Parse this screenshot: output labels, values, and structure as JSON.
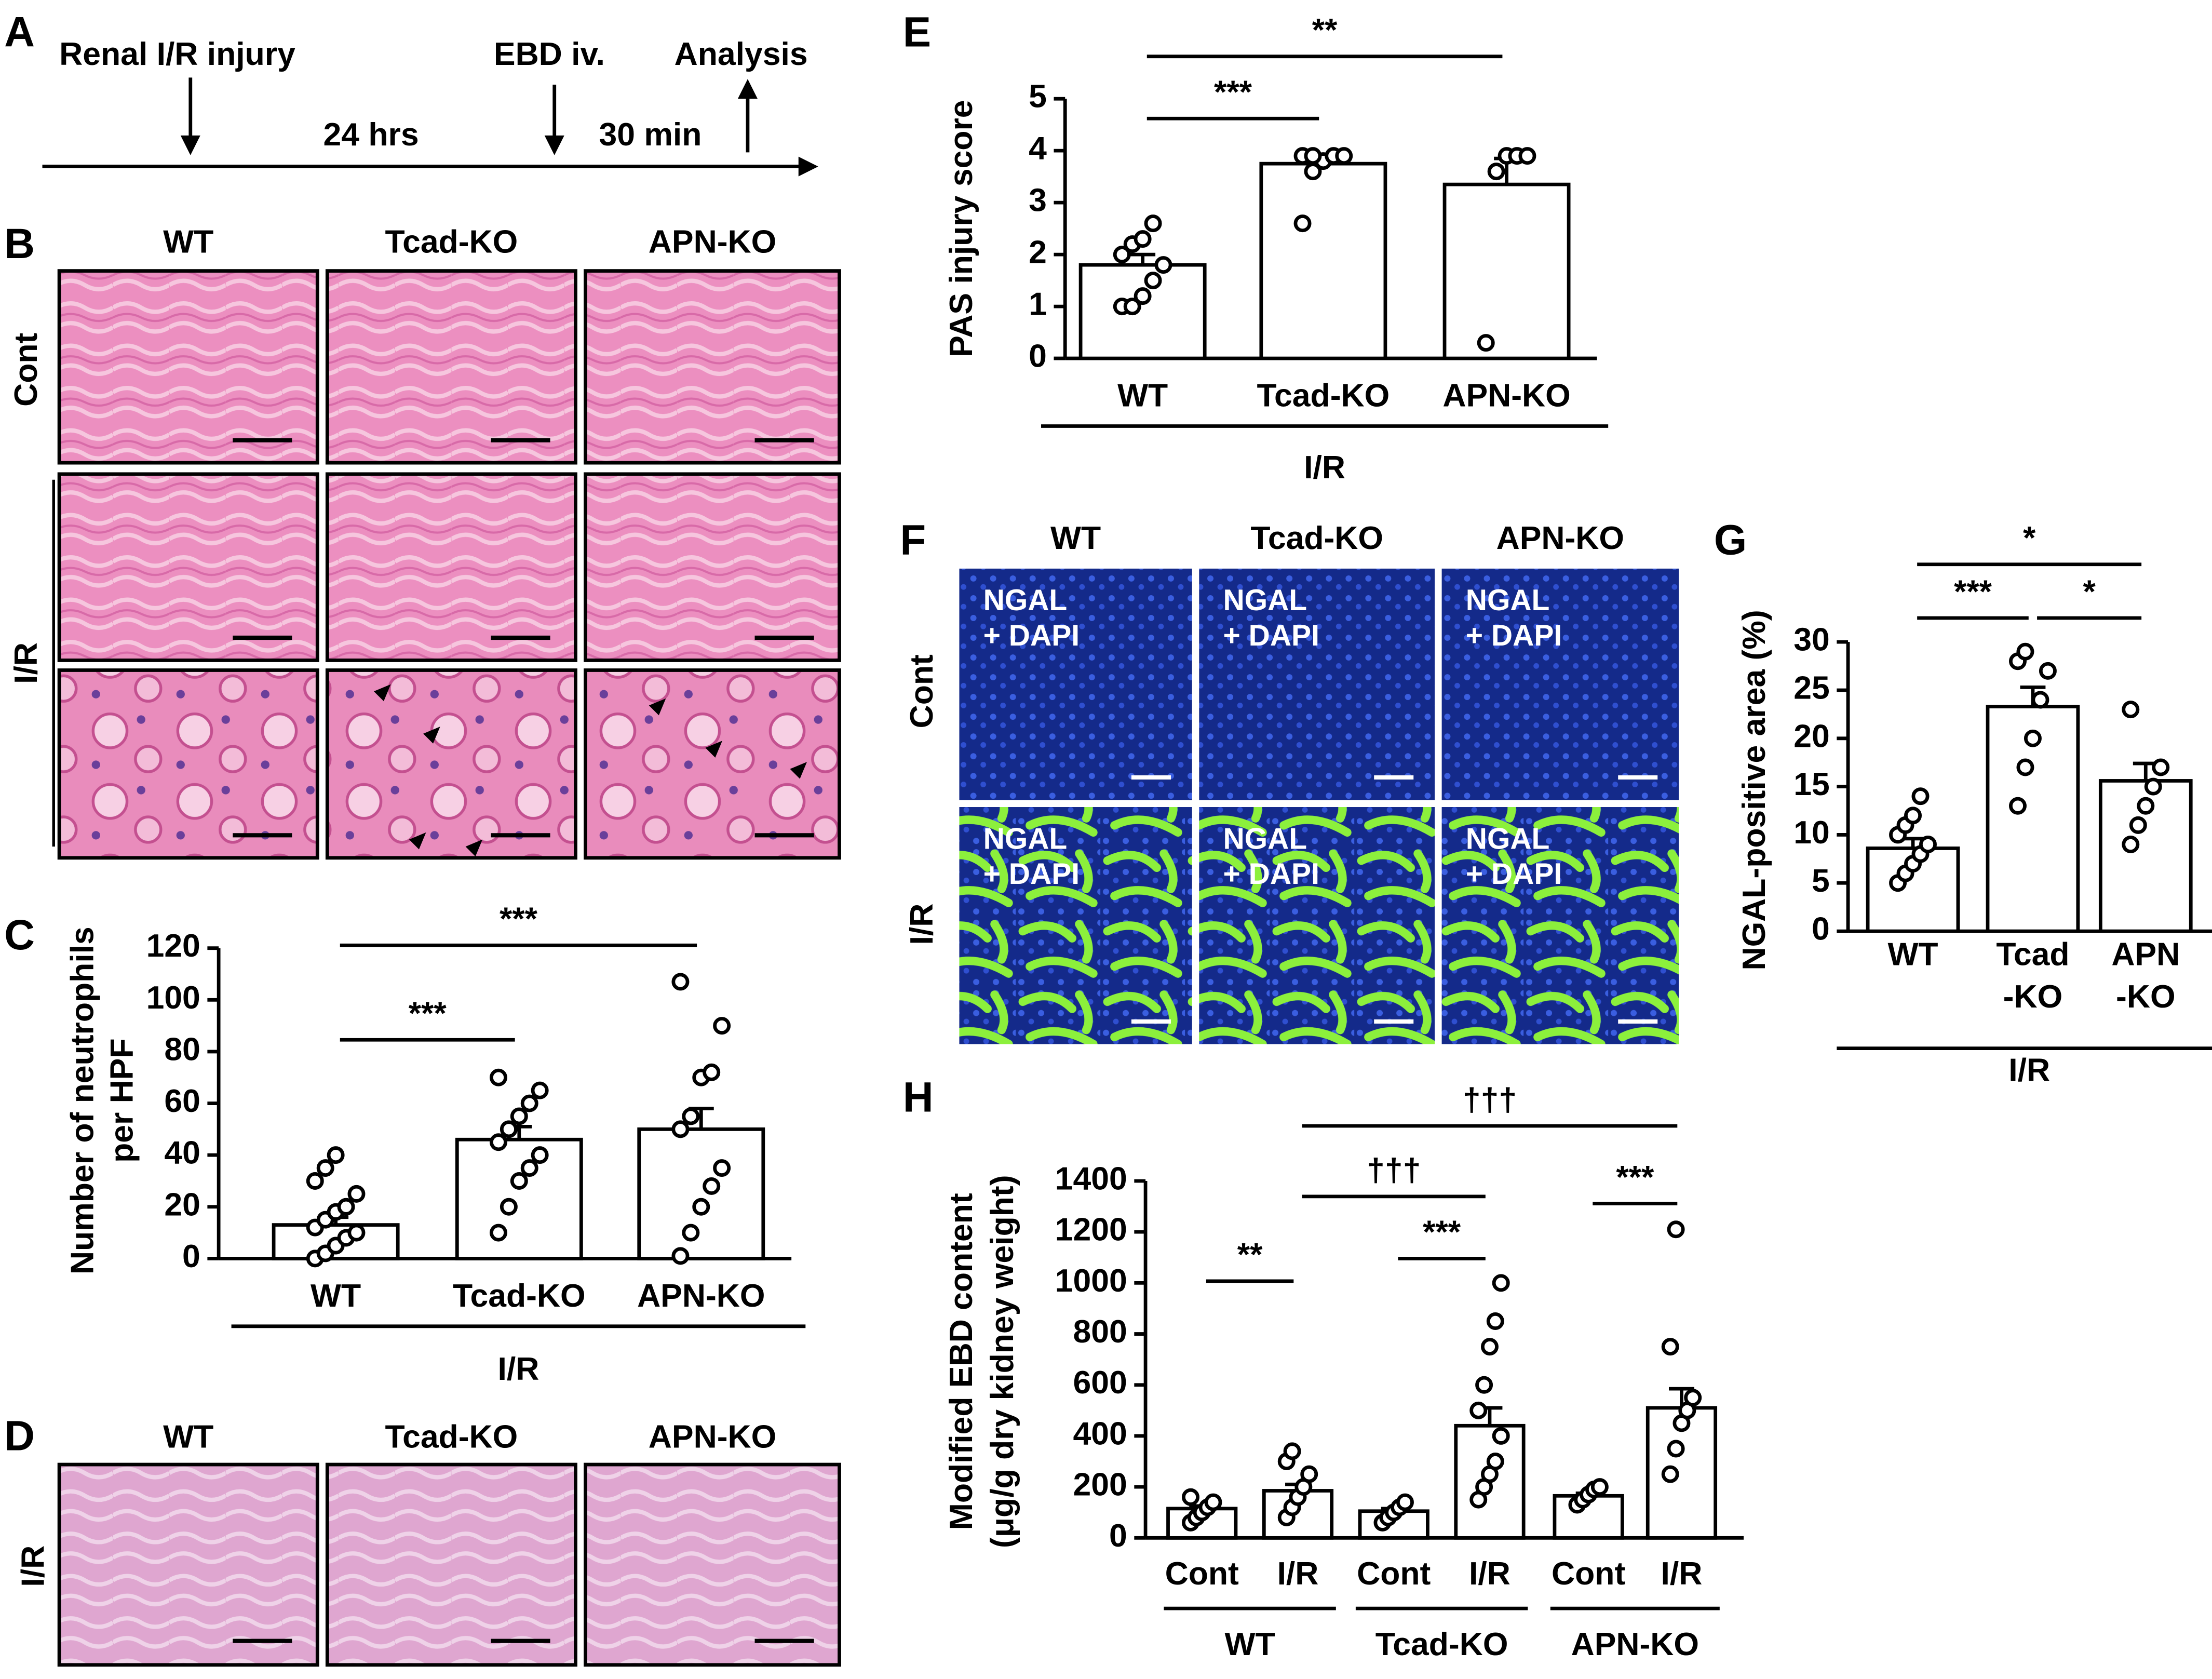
{
  "panel_letters": [
    "A",
    "B",
    "C",
    "D",
    "E",
    "F",
    "G",
    "H"
  ],
  "timeline": {
    "labels": [
      "Renal I/R injury",
      "24 hrs",
      "EBD iv.",
      "30 min",
      "Analysis"
    ]
  },
  "histology_B": {
    "columns": [
      "WT",
      "Tcad-KO",
      "APN-KO"
    ],
    "rows": [
      "Cont",
      "I/R"
    ]
  },
  "histology_D": {
    "columns": [
      "WT",
      "Tcad-KO",
      "APN-KO"
    ],
    "rows": [
      "I/R"
    ]
  },
  "fluorescence_F": {
    "columns": [
      "WT",
      "Tcad-KO",
      "APN-KO"
    ],
    "rows": [
      "Cont",
      "I/R"
    ],
    "stain": [
      "NGAL",
      "+ DAPI"
    ]
  },
  "chart_data": [
    {
      "type": "bar",
      "ylabel": [
        "Number of neutrophils",
        "per HPF"
      ],
      "categories": [
        [
          "WT"
        ],
        [
          "Tcad-KO"
        ],
        [
          "APN-KO"
        ]
      ],
      "values": [
        13,
        46,
        50
      ],
      "errors": [
        3,
        5,
        8
      ],
      "points": [
        [
          0,
          2,
          5,
          8,
          10,
          12,
          15,
          18,
          20,
          25,
          30,
          35,
          40
        ],
        [
          10,
          20,
          30,
          35,
          40,
          45,
          50,
          55,
          60,
          65,
          70
        ],
        [
          1,
          10,
          20,
          28,
          35,
          50,
          55,
          70,
          72,
          90,
          107
        ]
      ],
      "ylim": [
        0,
        120
      ],
      "yticks": [
        0,
        20,
        40,
        60,
        80,
        100,
        120
      ],
      "groups": [
        {
          "name": "I/R",
          "span": [
            0,
            2
          ]
        }
      ],
      "significance": [
        {
          "from": 0,
          "to": 1,
          "label": "***"
        },
        {
          "from": 0,
          "to": 2,
          "label": "***"
        }
      ]
    },
    {
      "type": "bar",
      "ylabel": [
        "PAS injury score"
      ],
      "categories": [
        [
          "WT"
        ],
        [
          "Tcad-KO"
        ],
        [
          "APN-KO"
        ]
      ],
      "values": [
        1.8,
        3.75,
        3.35
      ],
      "errors": [
        0.2,
        0.1,
        0.5
      ],
      "points": [
        [
          1.0,
          1.0,
          1.2,
          1.5,
          1.8,
          2.0,
          2.2,
          2.3,
          2.6
        ],
        [
          2.6,
          3.6,
          3.8,
          3.9,
          3.9,
          3.9,
          3.9
        ],
        [
          0.3,
          3.6,
          3.9,
          3.9,
          3.9
        ]
      ],
      "ylim": [
        0,
        5
      ],
      "yticks": [
        0,
        1,
        2,
        3,
        4,
        5
      ],
      "groups": [
        {
          "name": "I/R",
          "span": [
            0,
            2
          ]
        }
      ],
      "significance": [
        {
          "from": 0,
          "to": 1,
          "label": "***"
        },
        {
          "from": 0,
          "to": 2,
          "label": "**"
        }
      ]
    },
    {
      "type": "bar",
      "ylabel": [
        "NGAL-positive area (%)"
      ],
      "categories": [
        [
          "WT"
        ],
        [
          "Tcad",
          "-KO"
        ],
        [
          "APN",
          "-KO"
        ]
      ],
      "values": [
        8.6,
        23.3,
        15.6
      ],
      "errors": [
        1,
        2,
        1.8
      ],
      "points": [
        [
          5,
          6,
          7,
          8,
          9,
          10,
          11,
          12,
          14
        ],
        [
          13,
          17,
          20,
          24,
          27,
          28,
          29
        ],
        [
          9,
          11,
          13,
          15,
          17,
          23
        ]
      ],
      "ylim": [
        0,
        30
      ],
      "yticks": [
        0,
        5,
        10,
        15,
        20,
        25,
        30
      ],
      "groups": [
        {
          "name": "I/R",
          "span": [
            0,
            2
          ]
        }
      ],
      "significance": [
        {
          "from": 0,
          "to": 1,
          "label": "***"
        },
        {
          "from": 1,
          "to": 2,
          "label": "*"
        },
        {
          "from": 0,
          "to": 2,
          "label": "*"
        }
      ]
    },
    {
      "type": "bar",
      "ylabel": [
        "Modified EBD content",
        "(μg/g dry kidney weight)"
      ],
      "categories": [
        [
          "Cont"
        ],
        [
          "I/R"
        ],
        [
          "Cont"
        ],
        [
          "I/R"
        ],
        [
          "Cont"
        ],
        [
          "I/R"
        ]
      ],
      "values": [
        115,
        185,
        105,
        440,
        165,
        510
      ],
      "errors": [
        10,
        25,
        10,
        70,
        10,
        75
      ],
      "points": [
        [
          60,
          80,
          100,
          120,
          140,
          160
        ],
        [
          80,
          120,
          160,
          200,
          250,
          300,
          340
        ],
        [
          60,
          80,
          100,
          120,
          140
        ],
        [
          150,
          200,
          250,
          300,
          400,
          500,
          600,
          750,
          850,
          1000
        ],
        [
          130,
          150,
          170,
          190,
          200
        ],
        [
          250,
          350,
          450,
          500,
          550,
          750,
          1210
        ]
      ],
      "ylim": [
        0,
        1400
      ],
      "yticks": [
        0,
        200,
        400,
        600,
        800,
        1000,
        1200,
        1400
      ],
      "groups": [
        {
          "name": "WT",
          "span": [
            0,
            1
          ]
        },
        {
          "name": "Tcad-KO",
          "span": [
            2,
            3
          ]
        },
        {
          "name": "APN-KO",
          "span": [
            4,
            5
          ]
        }
      ],
      "significance": [
        {
          "from": 0,
          "to": 1,
          "label": "**"
        },
        {
          "from": 2,
          "to": 3,
          "label": "***"
        },
        {
          "from": 4,
          "to": 5,
          "label": "***"
        },
        {
          "from": 1,
          "to": 3,
          "label": "†††"
        },
        {
          "from": 1,
          "to": 5,
          "label": "†††"
        }
      ]
    }
  ]
}
